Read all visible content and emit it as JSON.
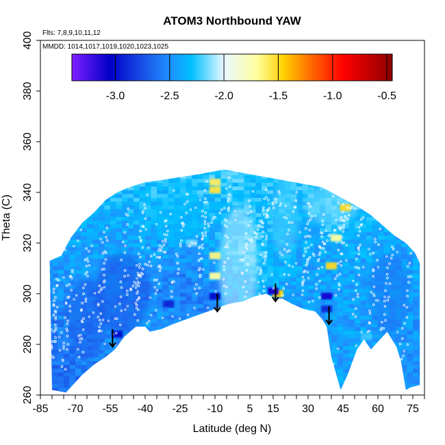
{
  "chart_data": {
    "type": "heatmap",
    "title": "ATOM3 Northbound YAW",
    "xlabel": "Latitude (deg N)",
    "ylabel": "Theta (C)",
    "xlim": [
      -85,
      80
    ],
    "ylim": [
      260,
      400
    ],
    "x_tick_values": [
      -85,
      -70,
      -55,
      -40,
      -25,
      -10,
      5,
      15,
      30,
      45,
      60,
      75
    ],
    "x_tick_labels": [
      "-85",
      "-70",
      "-55",
      "-40",
      "-25",
      "-10",
      "5",
      "15",
      "30",
      "45",
      "60",
      "75"
    ],
    "x_minor_step": 5,
    "y_tick_values": [
      260,
      280,
      300,
      320,
      340,
      360,
      380,
      400
    ],
    "y_tick_labels": [
      "260",
      "280",
      "300",
      "320",
      "340",
      "360",
      "380",
      "400"
    ],
    "flights_note": "Flts: 7,8,9,10,11,12",
    "mmdd_note": "MMDD: 1014,1017,1019,1020,1023,1025",
    "colorbar": {
      "range": [
        -3.4,
        -0.45
      ],
      "tick_values": [
        -3.0,
        -2.5,
        -2.0,
        -1.5,
        -1.0,
        -0.5
      ],
      "tick_labels": [
        "-3.0",
        "-2.5",
        "-2.0",
        "-1.5",
        "-1.0",
        "-0.5"
      ],
      "colors": [
        "#7f1fff",
        "#0000c8",
        "#1a4fe6",
        "#1e90ff",
        "#00bfff",
        "#e8f8ff",
        "#ffffa0",
        "#ffd000",
        "#ff6a00",
        "#ff0000",
        "#8b0000"
      ],
      "color_positions": [
        -3.4,
        -3.05,
        -2.75,
        -2.5,
        -2.3,
        -2.0,
        -1.7,
        -1.45,
        -1.2,
        -0.9,
        -0.45
      ]
    },
    "coverage": {
      "upper_boundary": [
        [
          -81,
          313
        ],
        [
          -76,
          315
        ],
        [
          -72,
          322
        ],
        [
          -67,
          328
        ],
        [
          -62,
          332
        ],
        [
          -57,
          337
        ],
        [
          -52,
          340
        ],
        [
          -47,
          342
        ],
        [
          -40,
          344
        ],
        [
          -32,
          345
        ],
        [
          -25,
          346
        ],
        [
          -18,
          347
        ],
        [
          -12,
          348
        ],
        [
          -6,
          349
        ],
        [
          0,
          348
        ],
        [
          6,
          347
        ],
        [
          12,
          346
        ],
        [
          18,
          345
        ],
        [
          24,
          344
        ],
        [
          30,
          343
        ],
        [
          36,
          342
        ],
        [
          40,
          340
        ],
        [
          44,
          338
        ],
        [
          48,
          336
        ],
        [
          52,
          334
        ],
        [
          57,
          331
        ],
        [
          62,
          327
        ],
        [
          67,
          323
        ],
        [
          72,
          320
        ],
        [
          76,
          316
        ],
        [
          78,
          312
        ]
      ],
      "lower_boundary": [
        [
          78,
          264
        ],
        [
          74,
          263
        ],
        [
          72,
          262
        ],
        [
          70,
          273
        ],
        [
          68,
          279
        ],
        [
          66,
          282
        ],
        [
          64,
          285
        ],
        [
          62,
          283
        ],
        [
          60,
          281
        ],
        [
          57,
          278
        ],
        [
          54,
          282
        ],
        [
          51,
          278
        ],
        [
          47,
          268
        ],
        [
          44,
          262
        ],
        [
          40,
          275
        ],
        [
          38,
          287
        ],
        [
          36,
          290
        ],
        [
          33,
          293
        ],
        [
          28,
          294
        ],
        [
          23,
          296
        ],
        [
          19,
          298
        ],
        [
          16,
          298
        ],
        [
          12,
          300
        ],
        [
          7,
          299
        ],
        [
          2,
          297
        ],
        [
          -4,
          296
        ],
        [
          -10,
          294
        ],
        [
          -16,
          292
        ],
        [
          -22,
          290
        ],
        [
          -28,
          288
        ],
        [
          -33,
          286
        ],
        [
          -38,
          285
        ],
        [
          -40,
          287
        ],
        [
          -44,
          287
        ],
        [
          -49,
          283
        ],
        [
          -53,
          278
        ],
        [
          -57,
          275
        ],
        [
          -62,
          272
        ],
        [
          -67,
          268
        ],
        [
          -72,
          263
        ],
        [
          -74,
          261
        ],
        [
          -80,
          262
        ]
      ]
    },
    "anomalies": [
      {
        "lat": 46,
        "theta": 334,
        "value": -1.5
      },
      {
        "lat": -10,
        "theta": 344,
        "value": -1.6
      },
      {
        "lat": -10,
        "theta": 341,
        "value": -1.55
      },
      {
        "lat": -10,
        "theta": 315,
        "value": -1.65
      },
      {
        "lat": -10,
        "theta": 307,
        "value": -1.7
      },
      {
        "lat": 40,
        "theta": 311,
        "value": -1.5
      },
      {
        "lat": 42,
        "theta": 322,
        "value": -1.7
      },
      {
        "lat": 17,
        "theta": 300,
        "value": -1.45
      },
      {
        "lat": 15,
        "theta": 301,
        "value": -3.1
      },
      {
        "lat": -10,
        "theta": 299,
        "value": -3.0
      },
      {
        "lat": 38,
        "theta": 299,
        "value": -3.1
      },
      {
        "lat": -52,
        "theta": 284,
        "value": -3.0
      },
      {
        "lat": 38,
        "theta": 294,
        "value": -2.9
      },
      {
        "lat": -30,
        "theta": 296,
        "value": -2.9
      },
      {
        "lat": 55,
        "theta": 283,
        "value": -2.2
      },
      {
        "lat": 5,
        "theta": 318,
        "value": -2.1
      },
      {
        "lat": -20,
        "theta": 320,
        "value": -2.1
      }
    ],
    "arrows": [
      {
        "lat": -54,
        "theta_start": 286,
        "theta_end": 279
      },
      {
        "lat": -9,
        "theta_start": 300,
        "theta_end": 293
      },
      {
        "lat": 16,
        "theta_start": 304,
        "theta_end": 297
      },
      {
        "lat": 39,
        "theta_start": 295,
        "theta_end": 288
      }
    ]
  }
}
